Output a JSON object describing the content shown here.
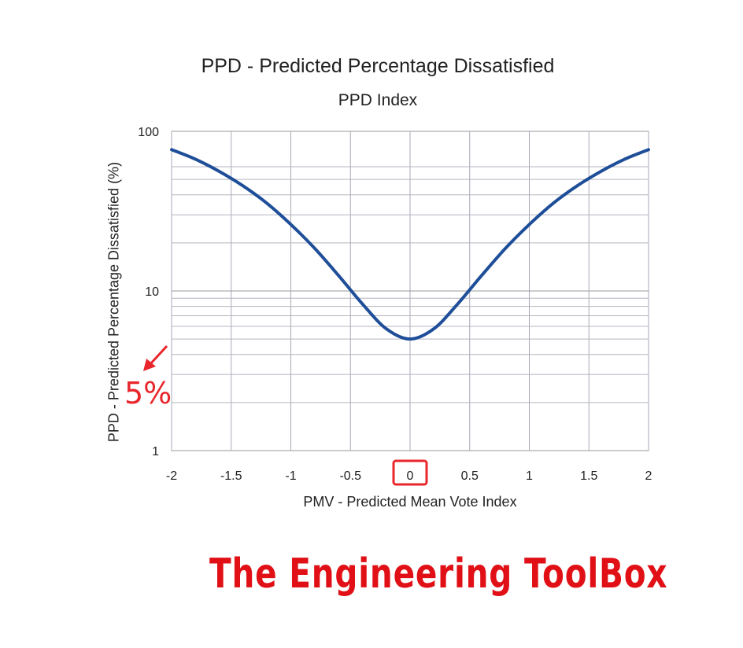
{
  "chart_data": {
    "type": "line",
    "title": "PPD - Predicted Percentage Dissatisfied",
    "subtitle": "PPD Index",
    "xlabel": "PMV - Predicted Mean Vote Index",
    "ylabel": "PPD - Predicted Percentage Dissatisfied (%)",
    "xlim": [
      -2,
      2
    ],
    "ylim": [
      1,
      100
    ],
    "yscale": "log",
    "grid": true,
    "x_ticks": [
      -2,
      -1.5,
      -1,
      -0.5,
      0,
      0.5,
      1,
      1.5,
      2
    ],
    "x_tick_labels": [
      "-2",
      "-1.5",
      "-1",
      "-0.5",
      "0",
      "0.5",
      "1",
      "1.5",
      "2"
    ],
    "y_ticks": [
      1,
      10,
      100
    ],
    "y_tick_labels": [
      "1",
      "10",
      "100"
    ],
    "series": [
      {
        "name": "PPD",
        "color": "#1f4e99",
        "x": [
          -2.0,
          -1.8,
          -1.6,
          -1.4,
          -1.2,
          -1.0,
          -0.8,
          -0.6,
          -0.4,
          -0.2,
          0.0,
          0.2,
          0.4,
          0.6,
          0.8,
          1.0,
          1.2,
          1.4,
          1.6,
          1.8,
          2.0
        ],
        "y": [
          76.8,
          66.9,
          56.1,
          45.5,
          35.4,
          26.1,
          18.5,
          12.5,
          8.3,
          5.8,
          5.0,
          5.8,
          8.3,
          12.5,
          18.5,
          26.1,
          35.4,
          45.5,
          56.1,
          66.9,
          76.8
        ]
      }
    ],
    "annotations": [
      {
        "text": "5%",
        "color": "#e8262b",
        "points_to": "y=5 on the y axis"
      },
      {
        "text": "highlight box",
        "target": "x tick 0",
        "color": "#e8262b"
      }
    ]
  },
  "watermark": "The Engineering ToolBox"
}
